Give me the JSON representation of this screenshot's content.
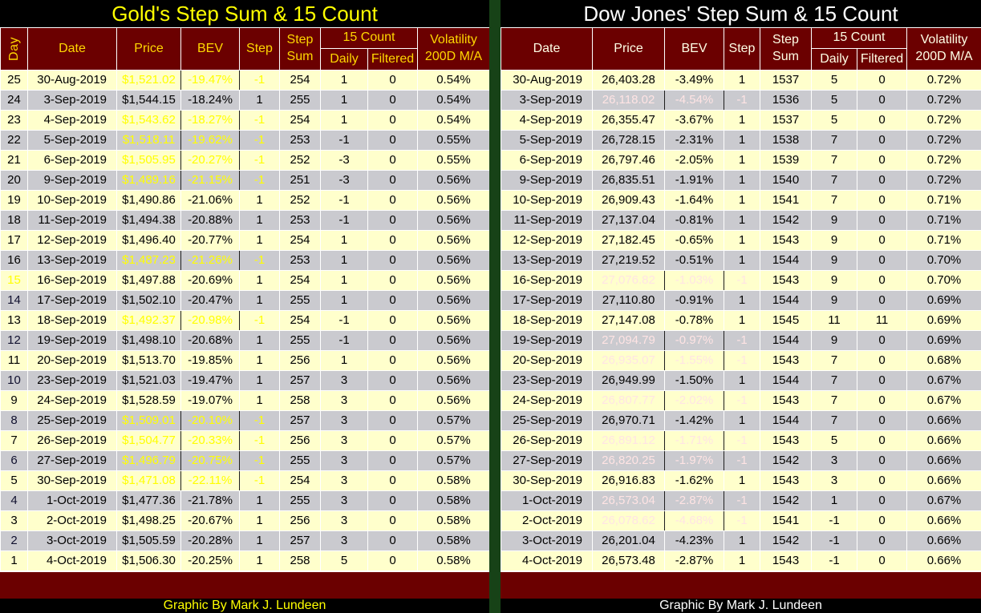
{
  "colors": {
    "background": "#000000",
    "header_maroon": "#6B0000",
    "red_signal_cell": "#8E0000",
    "row_cream": "#FFFFCC",
    "row_gray": "#CACACF",
    "day_blue": "#A9C6F2",
    "day_tan": "#C1B9A1",
    "day_highlight_bg": "#000000",
    "day_highlight_text": "#FFFF00",
    "divider_green": "#174217",
    "gold_title": "#FFFF00",
    "gold_header_text": "#FFD700",
    "dow_title": "#FFFFFF",
    "gold_red_cell_text": "#FFFF00",
    "dow_red_cell_text": "#FFE4E4"
  },
  "tables": [
    {
      "footer": "Graphic By Mark J. Lundeen",
      "headers": {
        "day": "Day",
        "date": "Date",
        "price": "Price",
        "bev": "BEV",
        "step": "Step",
        "step_sum_top": "Step",
        "step_sum_bottom": "Sum",
        "count15": "15 Count",
        "daily": "Daily",
        "filtered": "Filtered",
        "volatility_top": "Volatility",
        "volatility_bottom": "200D M/A"
      }
    },
    {
      "footer": "Graphic By Mark J. Lundeen",
      "headers": {
        "date": "Date",
        "price": "Price",
        "bev": "BEV",
        "step": "Step",
        "step_sum_top": "Step",
        "step_sum_bottom": "Sum",
        "count15": "15 Count",
        "daily": "Daily",
        "filtered": "Filtered",
        "volatility_top": "Volatility",
        "volatility_bottom": "200D M/A"
      }
    }
  ],
  "chart_data": [
    {
      "type": "table",
      "title": "Gold's Step Sum & 15 Count",
      "columns": [
        "Day",
        "Date",
        "Price",
        "BEV",
        "Step",
        "Step Sum",
        "15 Count Daily",
        "15 Count Filtered",
        "Volatility 200D M/A"
      ],
      "rows": [
        [
          25,
          "30-Aug-2019",
          "$1,521.02",
          "-19.47%",
          -1,
          254,
          1,
          0,
          "0.54%"
        ],
        [
          24,
          "3-Sep-2019",
          "$1,544.15",
          "-18.24%",
          1,
          255,
          1,
          0,
          "0.54%"
        ],
        [
          23,
          "4-Sep-2019",
          "$1,543.62",
          "-18.27%",
          -1,
          254,
          1,
          0,
          "0.54%"
        ],
        [
          22,
          "5-Sep-2019",
          "$1,518.11",
          "-19.62%",
          -1,
          253,
          -1,
          0,
          "0.55%"
        ],
        [
          21,
          "6-Sep-2019",
          "$1,505.95",
          "-20.27%",
          -1,
          252,
          -3,
          0,
          "0.55%"
        ],
        [
          20,
          "9-Sep-2019",
          "$1,489.16",
          "-21.15%",
          -1,
          251,
          -3,
          0,
          "0.56%"
        ],
        [
          19,
          "10-Sep-2019",
          "$1,490.86",
          "-21.06%",
          1,
          252,
          -1,
          0,
          "0.56%"
        ],
        [
          18,
          "11-Sep-2019",
          "$1,494.38",
          "-20.88%",
          1,
          253,
          -1,
          0,
          "0.56%"
        ],
        [
          17,
          "12-Sep-2019",
          "$1,496.40",
          "-20.77%",
          1,
          254,
          1,
          0,
          "0.56%"
        ],
        [
          16,
          "13-Sep-2019",
          "$1,487.23",
          "-21.26%",
          -1,
          253,
          1,
          0,
          "0.56%"
        ],
        [
          15,
          "16-Sep-2019",
          "$1,497.88",
          "-20.69%",
          1,
          254,
          1,
          0,
          "0.56%"
        ],
        [
          14,
          "17-Sep-2019",
          "$1,502.10",
          "-20.47%",
          1,
          255,
          1,
          0,
          "0.56%"
        ],
        [
          13,
          "18-Sep-2019",
          "$1,492.37",
          "-20.98%",
          -1,
          254,
          -1,
          0,
          "0.56%"
        ],
        [
          12,
          "19-Sep-2019",
          "$1,498.10",
          "-20.68%",
          1,
          255,
          -1,
          0,
          "0.56%"
        ],
        [
          11,
          "20-Sep-2019",
          "$1,513.70",
          "-19.85%",
          1,
          256,
          1,
          0,
          "0.56%"
        ],
        [
          10,
          "23-Sep-2019",
          "$1,521.03",
          "-19.47%",
          1,
          257,
          3,
          0,
          "0.56%"
        ],
        [
          9,
          "24-Sep-2019",
          "$1,528.59",
          "-19.07%",
          1,
          258,
          3,
          0,
          "0.56%"
        ],
        [
          8,
          "25-Sep-2019",
          "$1,509.01",
          "-20.10%",
          -1,
          257,
          3,
          0,
          "0.57%"
        ],
        [
          7,
          "26-Sep-2019",
          "$1,504.77",
          "-20.33%",
          -1,
          256,
          3,
          0,
          "0.57%"
        ],
        [
          6,
          "27-Sep-2019",
          "$1,496.79",
          "-20.75%",
          -1,
          255,
          3,
          0,
          "0.57%"
        ],
        [
          5,
          "30-Sep-2019",
          "$1,471.08",
          "-22.11%",
          -1,
          254,
          3,
          0,
          "0.58%"
        ],
        [
          4,
          "1-Oct-2019",
          "$1,477.36",
          "-21.78%",
          1,
          255,
          3,
          0,
          "0.58%"
        ],
        [
          3,
          "2-Oct-2019",
          "$1,498.25",
          "-20.67%",
          1,
          256,
          3,
          0,
          "0.58%"
        ],
        [
          2,
          "3-Oct-2019",
          "$1,505.59",
          "-20.28%",
          1,
          257,
          3,
          0,
          "0.58%"
        ],
        [
          1,
          "4-Oct-2019",
          "$1,506.30",
          "-20.25%",
          1,
          258,
          5,
          0,
          "0.58%"
        ]
      ]
    },
    {
      "type": "table",
      "title": "Dow Jones' Step Sum & 15 Count",
      "columns": [
        "Date",
        "Price",
        "BEV",
        "Step",
        "Step Sum",
        "15 Count Daily",
        "15 Count Filtered",
        "Volatility 200D M/A"
      ],
      "rows": [
        [
          "30-Aug-2019",
          "26,403.28",
          "-3.49%",
          1,
          1537,
          5,
          0,
          "0.72%"
        ],
        [
          "3-Sep-2019",
          "26,118.02",
          "-4.54%",
          -1,
          1536,
          5,
          0,
          "0.72%"
        ],
        [
          "4-Sep-2019",
          "26,355.47",
          "-3.67%",
          1,
          1537,
          5,
          0,
          "0.72%"
        ],
        [
          "5-Sep-2019",
          "26,728.15",
          "-2.31%",
          1,
          1538,
          7,
          0,
          "0.72%"
        ],
        [
          "6-Sep-2019",
          "26,797.46",
          "-2.05%",
          1,
          1539,
          7,
          0,
          "0.72%"
        ],
        [
          "9-Sep-2019",
          "26,835.51",
          "-1.91%",
          1,
          1540,
          7,
          0,
          "0.72%"
        ],
        [
          "10-Sep-2019",
          "26,909.43",
          "-1.64%",
          1,
          1541,
          7,
          0,
          "0.71%"
        ],
        [
          "11-Sep-2019",
          "27,137.04",
          "-0.81%",
          1,
          1542,
          9,
          0,
          "0.71%"
        ],
        [
          "12-Sep-2019",
          "27,182.45",
          "-0.65%",
          1,
          1543,
          9,
          0,
          "0.71%"
        ],
        [
          "13-Sep-2019",
          "27,219.52",
          "-0.51%",
          1,
          1544,
          9,
          0,
          "0.70%"
        ],
        [
          "16-Sep-2019",
          "27,076.82",
          "-1.03%",
          -1,
          1543,
          9,
          0,
          "0.70%"
        ],
        [
          "17-Sep-2019",
          "27,110.80",
          "-0.91%",
          1,
          1544,
          9,
          0,
          "0.69%"
        ],
        [
          "18-Sep-2019",
          "27,147.08",
          "-0.78%",
          1,
          1545,
          11,
          11,
          "0.69%"
        ],
        [
          "19-Sep-2019",
          "27,094.79",
          "-0.97%",
          -1,
          1544,
          9,
          0,
          "0.69%"
        ],
        [
          "20-Sep-2019",
          "26,935.07",
          "-1.55%",
          -1,
          1543,
          7,
          0,
          "0.68%"
        ],
        [
          "23-Sep-2019",
          "26,949.99",
          "-1.50%",
          1,
          1544,
          7,
          0,
          "0.67%"
        ],
        [
          "24-Sep-2019",
          "26,807.77",
          "-2.02%",
          -1,
          1543,
          7,
          0,
          "0.67%"
        ],
        [
          "25-Sep-2019",
          "26,970.71",
          "-1.42%",
          1,
          1544,
          7,
          0,
          "0.66%"
        ],
        [
          "26-Sep-2019",
          "26,891.12",
          "-1.71%",
          -1,
          1543,
          5,
          0,
          "0.66%"
        ],
        [
          "27-Sep-2019",
          "26,820.25",
          "-1.97%",
          -1,
          1542,
          3,
          0,
          "0.66%"
        ],
        [
          "30-Sep-2019",
          "26,916.83",
          "-1.62%",
          1,
          1543,
          3,
          0,
          "0.66%"
        ],
        [
          "1-Oct-2019",
          "26,573.04",
          "-2.87%",
          -1,
          1542,
          1,
          0,
          "0.67%"
        ],
        [
          "2-Oct-2019",
          "26,078.62",
          "-4.68%",
          -1,
          1541,
          -1,
          0,
          "0.66%"
        ],
        [
          "3-Oct-2019",
          "26,201.04",
          "-4.23%",
          1,
          1542,
          -1,
          0,
          "0.66%"
        ],
        [
          "4-Oct-2019",
          "26,573.48",
          "-2.87%",
          1,
          1543,
          -1,
          0,
          "0.66%"
        ]
      ]
    }
  ]
}
